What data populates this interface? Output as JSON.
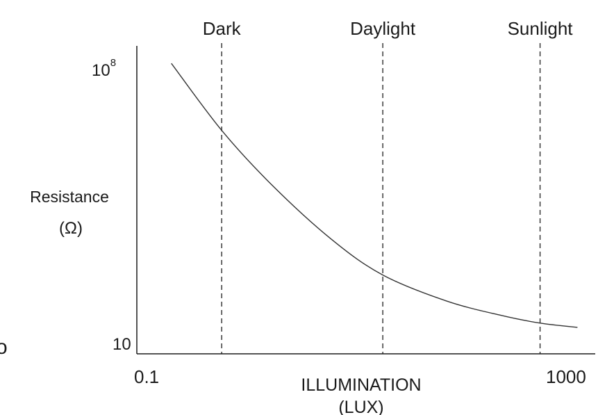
{
  "chart_data": {
    "type": "line",
    "title": "",
    "xlabel_line1": "ILLUMINATION",
    "xlabel_line2": "(LUX)",
    "ylabel_line1": "Resistance",
    "ylabel_line2": "(Ω)",
    "x_scale": "log",
    "y_scale": "log",
    "xlim": [
      0.1,
      1000
    ],
    "ylim": [
      10,
      100000000
    ],
    "x_tick_labels": [
      {
        "value": 0.1,
        "label": "0.1"
      },
      {
        "value": 1000,
        "label": "1000"
      }
    ],
    "y_tick_labels": [
      {
        "value": 10,
        "base": "10",
        "exp": ""
      },
      {
        "value": 100000000,
        "base": "10",
        "exp": "8"
      }
    ],
    "reference_lines": [
      {
        "name": "Dark",
        "x": 0.55
      },
      {
        "name": "Daylight",
        "x": 14
      },
      {
        "name": "Sunlight",
        "x": 330
      }
    ],
    "series": [
      {
        "points": [
          [
            0.2,
            40000000
          ],
          [
            0.55,
            1200000
          ],
          [
            1.5,
            70000
          ],
          [
            5,
            4000
          ],
          [
            14,
            620
          ],
          [
            50,
            160
          ],
          [
            150,
            75
          ],
          [
            330,
            50
          ],
          [
            700,
            40
          ]
        ]
      }
    ],
    "grid": false,
    "legend": "none"
  },
  "stray_text": "o"
}
